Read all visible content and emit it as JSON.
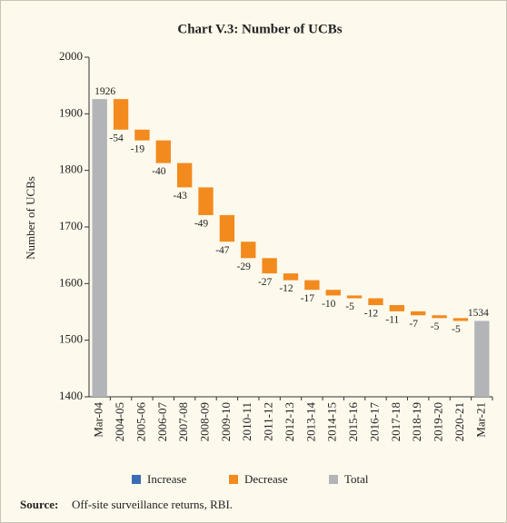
{
  "chart_data": {
    "type": "waterfall",
    "title": "Chart V.3: Number of UCBs",
    "y_label": "Number of UCBs",
    "categories": [
      "Mar-04",
      "2004-05",
      "2005-06",
      "2006-07",
      "2007-08",
      "2008-09",
      "2009-10",
      "2010-11",
      "2011-12",
      "2012-13",
      "2013-14",
      "2014-15",
      "2015-16",
      "2016-17",
      "2017-18",
      "2018-19",
      "2019-20",
      "2020-21",
      "Mar-21"
    ],
    "values": [
      1926,
      -54,
      -19,
      -40,
      -43,
      -49,
      -47,
      -29,
      -27,
      -12,
      -17,
      -10,
      -5,
      -12,
      -11,
      -7,
      -5,
      -5,
      1534
    ],
    "measure": [
      "total",
      "relative",
      "relative",
      "relative",
      "relative",
      "relative",
      "relative",
      "relative",
      "relative",
      "relative",
      "relative",
      "relative",
      "relative",
      "relative",
      "relative",
      "relative",
      "relative",
      "relative",
      "total"
    ],
    "legend": [
      {
        "name": "Increase",
        "color": "#3a6db5"
      },
      {
        "name": "Decrease",
        "color": "#f28a1e"
      },
      {
        "name": "Total",
        "color": "#b3b4b8"
      }
    ],
    "ylim": [
      1400,
      2000
    ],
    "yticks": [
      1400,
      1500,
      1600,
      1700,
      1800,
      1900,
      2000
    ],
    "source_label": "Source:",
    "source": "Off-site surveillance returns, RBI."
  }
}
